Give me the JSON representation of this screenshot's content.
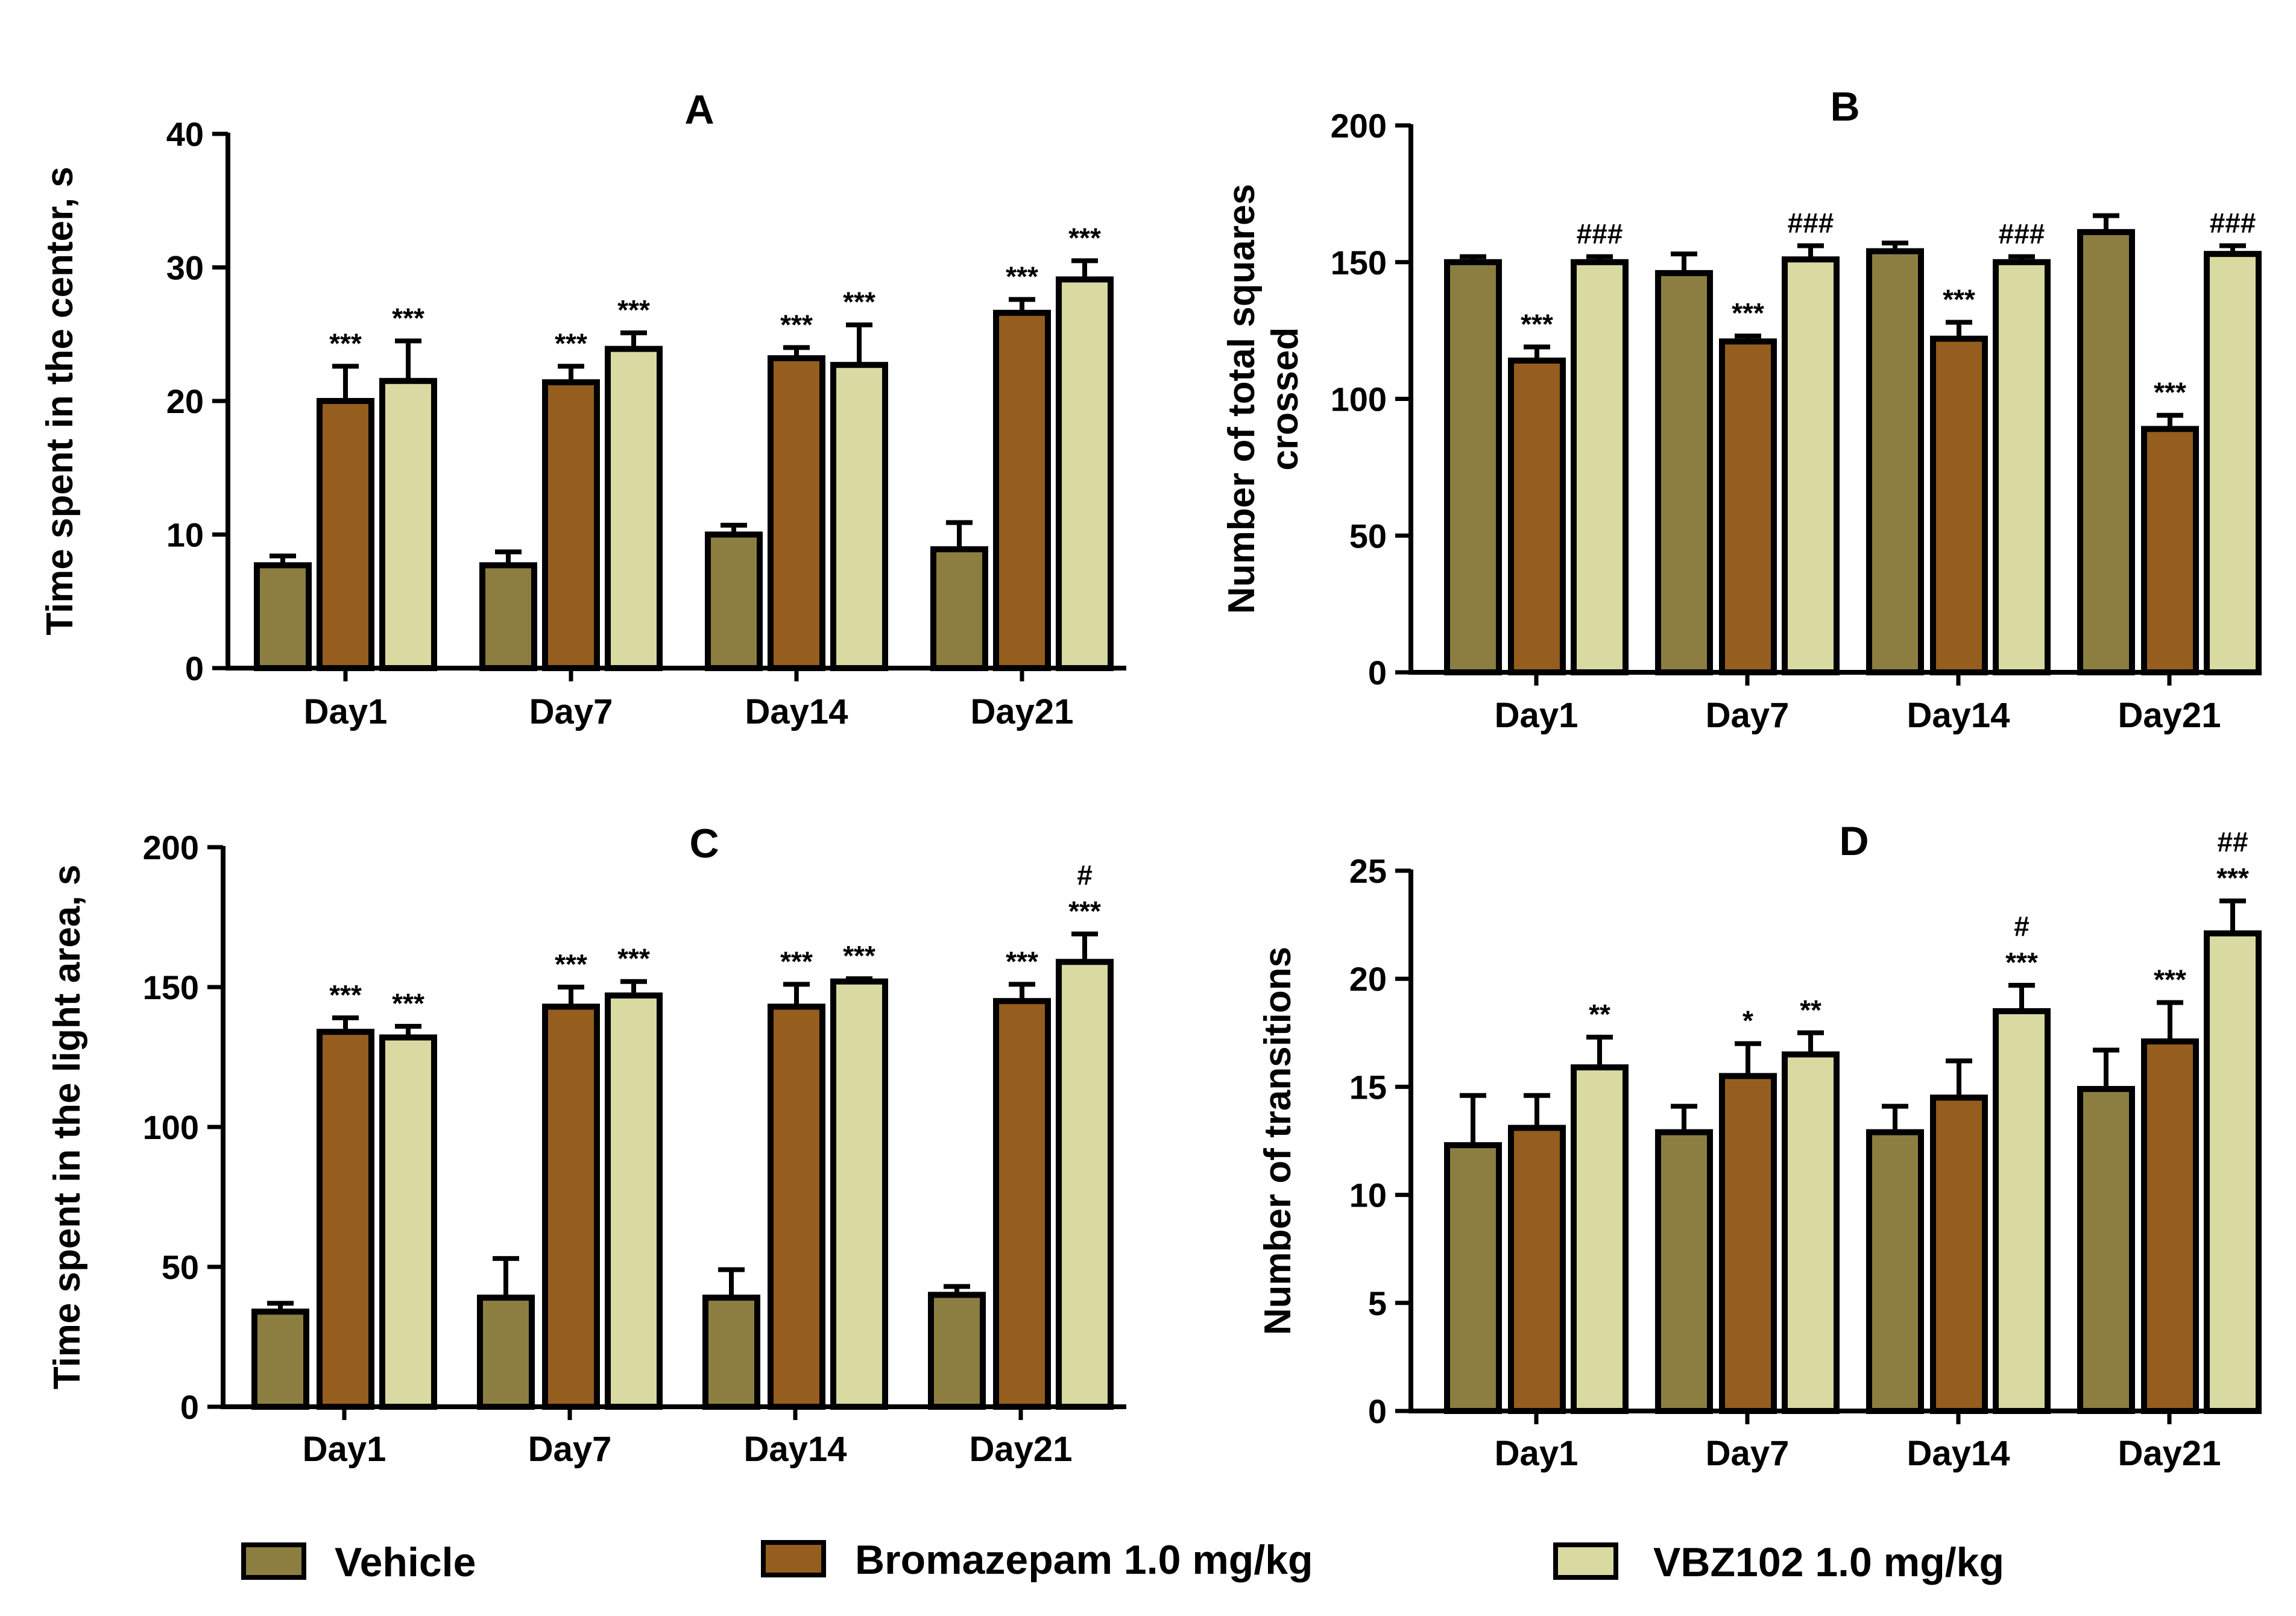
{
  "colors": {
    "vehicle": "#8C7E40",
    "bromazepam": "#955E1E",
    "vbz102": "#D9D9A2",
    "stroke": "#000000"
  },
  "legend": [
    {
      "name": "Vehicle",
      "color": "#8C7E40"
    },
    {
      "name": "Bromazepam 1.0 mg/kg",
      "color": "#955E1E"
    },
    {
      "name": "VBZ102 1.0 mg/kg",
      "color": "#D9D9A2"
    }
  ],
  "chart_data": [
    {
      "type": "bar",
      "title": "A",
      "ylabel": "Time spent in the center, s",
      "ylim": [
        0,
        40
      ],
      "yticks": [
        0,
        10,
        20,
        30,
        40
      ],
      "categories": [
        "Day1",
        "Day7",
        "Day14",
        "Day21"
      ],
      "series": [
        {
          "name": "Vehicle",
          "values": [
            7.7,
            7.7,
            10,
            8.9
          ],
          "errors": [
            0.7,
            1.0,
            0.7,
            2.0
          ],
          "annotations": [
            [],
            [],
            [],
            []
          ]
        },
        {
          "name": "Bromazepam 1.0 mg/kg",
          "values": [
            20,
            21.4,
            23.2,
            26.6
          ],
          "errors": [
            2.6,
            1.2,
            0.8,
            1.0
          ],
          "annotations": [
            [
              "***"
            ],
            [
              "***"
            ],
            [
              "***"
            ],
            [
              "***"
            ]
          ]
        },
        {
          "name": "VBZ102 1.0 mg/kg",
          "values": [
            21.5,
            23.9,
            22.7,
            29.1
          ],
          "errors": [
            3.0,
            1.2,
            3.0,
            1.4
          ],
          "annotations": [
            [
              "***"
            ],
            [
              "***"
            ],
            [
              "***"
            ],
            [
              "***"
            ]
          ]
        }
      ]
    },
    {
      "type": "bar",
      "title": "B",
      "ylabel": "Number of total squares crossed",
      "ylim": [
        0,
        200
      ],
      "yticks": [
        0,
        50,
        100,
        150,
        200
      ],
      "categories": [
        "Day1",
        "Day7",
        "Day14",
        "Day21"
      ],
      "series": [
        {
          "name": "Vehicle",
          "values": [
            150,
            146,
            154,
            161
          ],
          "errors": [
            2,
            7,
            3,
            6
          ],
          "annotations": [
            [],
            [],
            [],
            []
          ]
        },
        {
          "name": "Bromazepam 1.0 mg/kg",
          "values": [
            114,
            121,
            122,
            89
          ],
          "errors": [
            5,
            2,
            6,
            5
          ],
          "annotations": [
            [
              "***"
            ],
            [
              "***"
            ],
            [
              "***"
            ],
            [
              "***"
            ]
          ]
        },
        {
          "name": "VBZ102 1.0 mg/kg",
          "values": [
            150,
            151,
            150,
            153
          ],
          "errors": [
            2,
            5,
            2,
            3
          ],
          "annotations": [
            [
              "###"
            ],
            [
              "###"
            ],
            [
              "###"
            ],
            [
              "###"
            ]
          ]
        }
      ]
    },
    {
      "type": "bar",
      "title": "C",
      "ylabel": "Time spent in the light area, s",
      "ylim": [
        0,
        200
      ],
      "yticks": [
        0,
        50,
        100,
        150,
        200
      ],
      "categories": [
        "Day1",
        "Day7",
        "Day14",
        "Day21"
      ],
      "series": [
        {
          "name": "Vehicle",
          "values": [
            34,
            39,
            39,
            40
          ],
          "errors": [
            3,
            14,
            10,
            3
          ],
          "annotations": [
            [],
            [],
            [],
            []
          ]
        },
        {
          "name": "Bromazepam 1.0 mg/kg",
          "values": [
            134,
            143,
            143,
            145
          ],
          "errors": [
            5,
            7,
            8,
            6
          ],
          "annotations": [
            [
              "***"
            ],
            [
              "***"
            ],
            [
              "***"
            ],
            [
              "***"
            ]
          ]
        },
        {
          "name": "VBZ102 1.0 mg/kg",
          "values": [
            132,
            147,
            152,
            159
          ],
          "errors": [
            4,
            5,
            1,
            10
          ],
          "annotations": [
            [
              "***"
            ],
            [
              "***"
            ],
            [
              "***"
            ],
            [
              "***",
              "#"
            ]
          ]
        }
      ]
    },
    {
      "type": "bar",
      "title": "D",
      "ylabel": "Number of transitions",
      "ylim": [
        0,
        25
      ],
      "yticks": [
        0,
        5,
        10,
        15,
        20,
        25
      ],
      "categories": [
        "Day1",
        "Day7",
        "Day14",
        "Day21"
      ],
      "series": [
        {
          "name": "Vehicle",
          "values": [
            12.3,
            12.9,
            12.9,
            14.9
          ],
          "errors": [
            2.3,
            1.2,
            1.2,
            1.8
          ],
          "annotations": [
            [],
            [],
            [],
            []
          ]
        },
        {
          "name": "Bromazepam 1.0 mg/kg",
          "values": [
            13.1,
            15.5,
            14.5,
            17.1
          ],
          "errors": [
            1.5,
            1.5,
            1.7,
            1.8
          ],
          "annotations": [
            [],
            [
              "*"
            ],
            [],
            [
              "***"
            ]
          ]
        },
        {
          "name": "VBZ102 1.0 mg/kg",
          "values": [
            15.9,
            16.5,
            18.5,
            22.1
          ],
          "errors": [
            1.4,
            1.0,
            1.2,
            1.5
          ],
          "annotations": [
            [
              "**"
            ],
            [
              "**"
            ],
            [
              "***",
              "#"
            ],
            [
              "***",
              "##"
            ]
          ]
        }
      ]
    }
  ]
}
